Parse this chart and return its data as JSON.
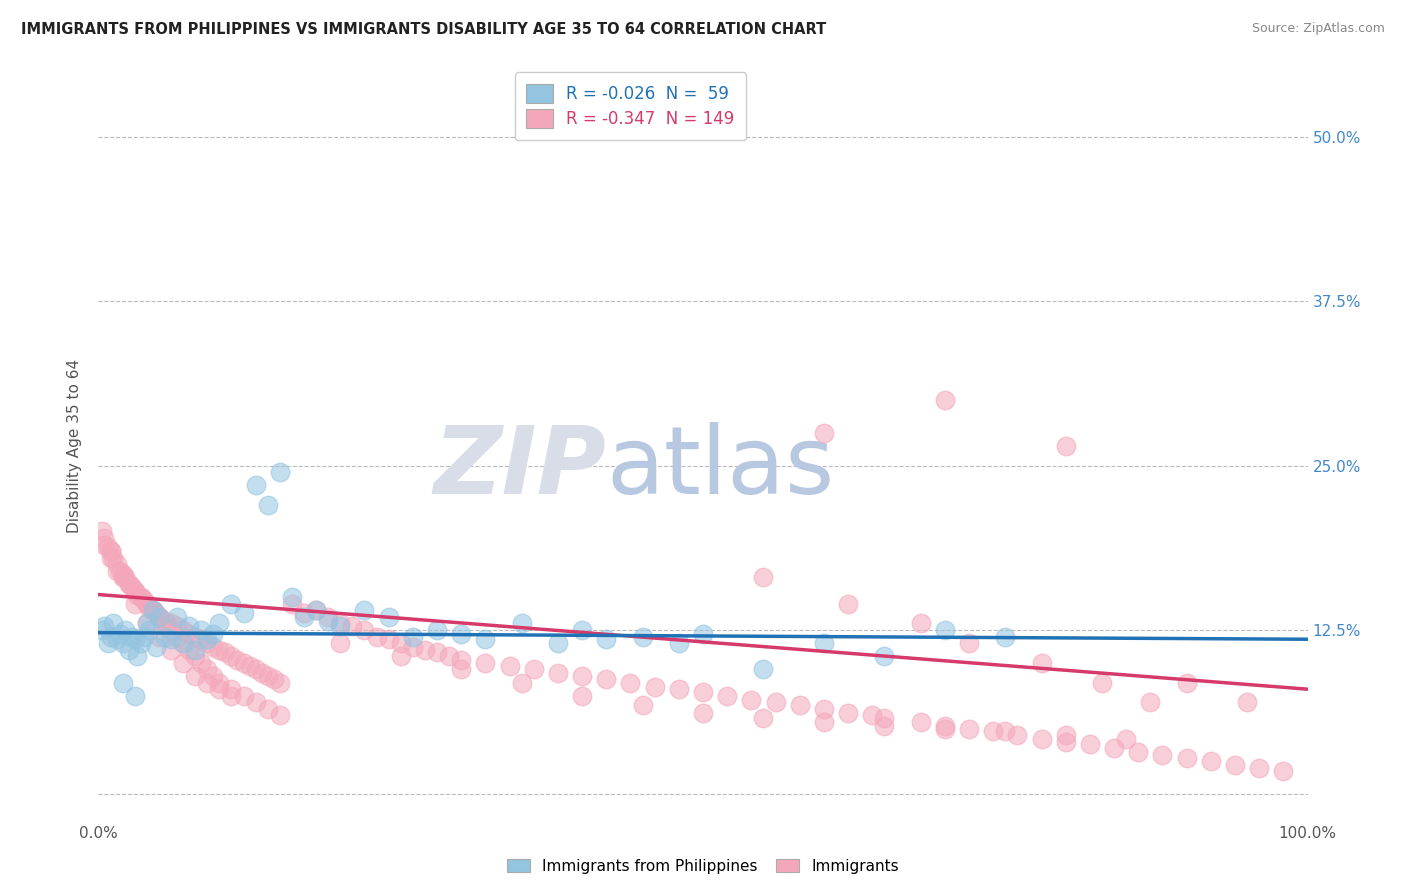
{
  "title": "IMMIGRANTS FROM PHILIPPINES VS IMMIGRANTS DISABILITY AGE 35 TO 64 CORRELATION CHART",
  "source": "Source: ZipAtlas.com",
  "ylabel": "Disability Age 35 to 64",
  "xlim": [
    0.0,
    100.0
  ],
  "ylim": [
    -2.0,
    55.0
  ],
  "yticks": [
    0.0,
    12.5,
    25.0,
    37.5,
    50.0
  ],
  "xticks": [
    0.0,
    100.0
  ],
  "xticklabels": [
    "0.0%",
    "100.0%"
  ],
  "yticklabels_right": [
    "",
    "12.5%",
    "25.0%",
    "37.5%",
    "50.0%"
  ],
  "blue_color": "#93c4e0",
  "pink_color": "#f4a7ba",
  "blue_line_color": "#2171b5",
  "pink_line_color": "#d63a6b",
  "grid_color": "#bbbbbb",
  "watermark_zip": "ZIP",
  "watermark_atlas": "atlas",
  "watermark_color_zip": "#d8dde8",
  "watermark_color_atlas": "#b8c8e0",
  "legend_text1": "R = -0.026  N =  59",
  "legend_text2": "R = -0.347  N = 149",
  "blue_r": -0.026,
  "pink_r": -0.347,
  "blue_intercept": 12.3,
  "blue_slope": -0.005,
  "pink_intercept": 15.2,
  "pink_slope": -0.072,
  "blue_scatter_x": [
    0.3,
    0.5,
    0.8,
    1.0,
    1.2,
    1.5,
    1.8,
    2.0,
    2.2,
    2.5,
    2.8,
    3.0,
    3.2,
    3.5,
    3.8,
    4.0,
    4.2,
    4.5,
    4.8,
    5.0,
    5.5,
    6.0,
    6.5,
    7.0,
    7.5,
    8.0,
    8.5,
    9.0,
    9.5,
    10.0,
    11.0,
    12.0,
    13.0,
    14.0,
    15.0,
    16.0,
    17.0,
    18.0,
    19.0,
    20.0,
    22.0,
    24.0,
    26.0,
    28.0,
    30.0,
    32.0,
    35.0,
    38.0,
    40.0,
    42.0,
    45.0,
    48.0,
    50.0,
    55.0,
    60.0,
    65.0,
    70.0,
    75.0,
    2.0,
    3.0
  ],
  "blue_scatter_y": [
    12.5,
    12.8,
    11.5,
    12.0,
    13.0,
    11.8,
    12.2,
    11.5,
    12.5,
    11.0,
    12.0,
    11.8,
    10.5,
    11.5,
    12.0,
    13.0,
    12.5,
    14.0,
    11.2,
    13.5,
    12.0,
    11.8,
    13.5,
    11.5,
    12.8,
    11.0,
    12.5,
    11.8,
    12.2,
    13.0,
    14.5,
    13.8,
    23.5,
    22.0,
    24.5,
    15.0,
    13.5,
    14.0,
    13.2,
    12.8,
    14.0,
    13.5,
    12.0,
    12.5,
    12.2,
    11.8,
    13.0,
    11.5,
    12.5,
    11.8,
    12.0,
    11.5,
    12.2,
    9.5,
    11.5,
    10.5,
    12.5,
    12.0,
    8.5,
    7.5
  ],
  "pink_scatter_x": [
    0.3,
    0.5,
    0.8,
    1.0,
    1.2,
    1.5,
    1.8,
    2.0,
    2.2,
    2.5,
    2.8,
    3.0,
    3.2,
    3.5,
    3.8,
    4.0,
    4.2,
    4.5,
    4.8,
    5.0,
    5.5,
    6.0,
    6.5,
    7.0,
    7.5,
    8.0,
    8.5,
    9.0,
    9.5,
    10.0,
    10.5,
    11.0,
    11.5,
    12.0,
    12.5,
    13.0,
    13.5,
    14.0,
    14.5,
    15.0,
    16.0,
    17.0,
    18.0,
    19.0,
    20.0,
    21.0,
    22.0,
    23.0,
    24.0,
    25.0,
    26.0,
    27.0,
    28.0,
    29.0,
    30.0,
    32.0,
    34.0,
    36.0,
    38.0,
    40.0,
    42.0,
    44.0,
    46.0,
    48.0,
    50.0,
    52.0,
    54.0,
    56.0,
    58.0,
    60.0,
    62.0,
    64.0,
    65.0,
    68.0,
    70.0,
    72.0,
    74.0,
    76.0,
    78.0,
    80.0,
    82.0,
    84.0,
    86.0,
    88.0,
    90.0,
    92.0,
    94.0,
    96.0,
    98.0,
    0.5,
    1.0,
    1.5,
    2.0,
    2.5,
    3.0,
    3.5,
    4.0,
    4.5,
    5.0,
    5.5,
    6.0,
    6.5,
    7.0,
    7.5,
    8.0,
    8.5,
    9.0,
    9.5,
    10.0,
    11.0,
    12.0,
    13.0,
    14.0,
    15.0,
    20.0,
    25.0,
    30.0,
    35.0,
    40.0,
    45.0,
    50.0,
    55.0,
    60.0,
    65.0,
    70.0,
    75.0,
    80.0,
    85.0,
    1.0,
    2.0,
    3.0,
    4.0,
    5.0,
    6.0,
    7.0,
    8.0,
    9.0,
    10.0,
    11.0,
    60.0,
    70.0,
    80.0,
    90.0,
    95.0,
    55.0,
    62.0,
    68.0,
    72.0,
    78.0,
    83.0,
    87.0
  ],
  "pink_scatter_y": [
    20.0,
    19.5,
    18.8,
    18.5,
    18.0,
    17.5,
    17.0,
    16.8,
    16.5,
    16.0,
    15.8,
    15.5,
    15.2,
    15.0,
    14.8,
    14.5,
    14.2,
    14.0,
    13.8,
    13.5,
    13.2,
    13.0,
    12.8,
    12.5,
    12.2,
    12.0,
    11.8,
    11.5,
    11.2,
    11.0,
    10.8,
    10.5,
    10.2,
    10.0,
    9.8,
    9.5,
    9.2,
    9.0,
    8.8,
    8.5,
    14.5,
    13.8,
    14.0,
    13.5,
    13.0,
    12.8,
    12.5,
    12.0,
    11.8,
    11.5,
    11.2,
    11.0,
    10.8,
    10.5,
    10.2,
    10.0,
    9.8,
    9.5,
    9.2,
    9.0,
    8.8,
    8.5,
    8.2,
    8.0,
    7.8,
    7.5,
    7.2,
    7.0,
    6.8,
    6.5,
    6.2,
    6.0,
    5.8,
    5.5,
    5.2,
    5.0,
    4.8,
    4.5,
    4.2,
    4.0,
    3.8,
    3.5,
    3.2,
    3.0,
    2.8,
    2.5,
    2.2,
    2.0,
    1.8,
    19.0,
    18.0,
    17.0,
    16.5,
    16.0,
    15.5,
    15.0,
    14.5,
    14.0,
    13.5,
    13.0,
    12.5,
    12.0,
    11.5,
    11.0,
    10.5,
    10.0,
    9.5,
    9.0,
    8.5,
    8.0,
    7.5,
    7.0,
    6.5,
    6.0,
    11.5,
    10.5,
    9.5,
    8.5,
    7.5,
    6.8,
    6.2,
    5.8,
    5.5,
    5.2,
    5.0,
    4.8,
    4.5,
    4.2,
    18.5,
    16.5,
    14.5,
    13.0,
    12.0,
    11.0,
    10.0,
    9.0,
    8.5,
    8.0,
    7.5,
    27.5,
    30.0,
    26.5,
    8.5,
    7.0,
    16.5,
    14.5,
    13.0,
    11.5,
    10.0,
    8.5,
    7.0
  ]
}
